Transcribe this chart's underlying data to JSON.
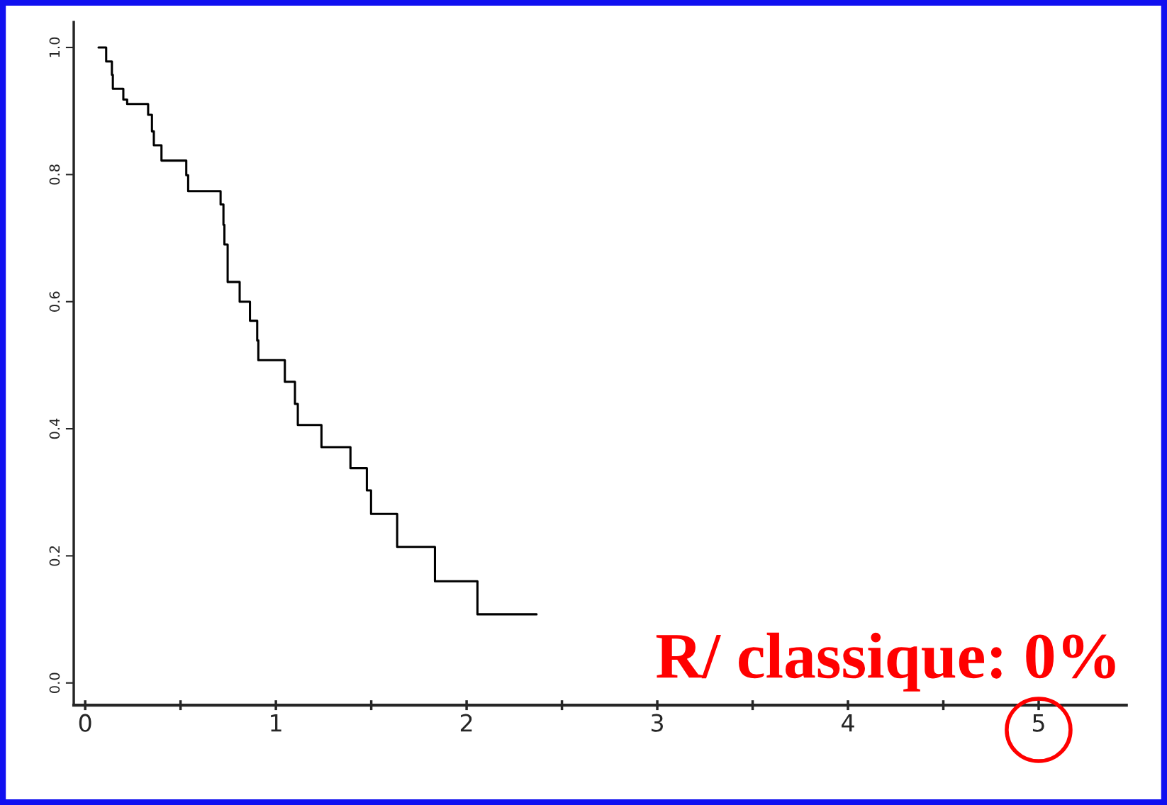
{
  "chart_data": {
    "type": "step",
    "x": [
      0.07,
      0.11,
      0.14,
      0.145,
      0.2,
      0.22,
      0.33,
      0.35,
      0.36,
      0.4,
      0.53,
      0.54,
      0.71,
      0.725,
      0.73,
      0.747,
      0.81,
      0.864,
      0.902,
      0.908,
      1.047,
      1.1,
      1.115,
      1.239,
      1.391,
      1.477,
      1.499,
      1.636,
      1.834,
      2.057,
      2.367
    ],
    "series": [
      {
        "color": "#000000",
        "values": [
          1.0,
          0.978,
          0.957,
          0.935,
          0.918,
          0.911,
          0.894,
          0.868,
          0.846,
          0.822,
          0.799,
          0.774,
          0.753,
          0.721,
          0.69,
          0.631,
          0.6,
          0.57,
          0.539,
          0.508,
          0.474,
          0.439,
          0.406,
          0.371,
          0.338,
          0.303,
          0.266,
          0.214,
          0.16,
          0.108,
          0.108
        ]
      }
    ],
    "xlim": [
      -0.06,
      5.46
    ],
    "ylim": [
      -0.035,
      1.04
    ],
    "xticks": [
      0,
      {
        "value": 0.5,
        "label": null
      },
      1,
      {
        "value": 1.5,
        "label": null
      },
      2,
      {
        "value": 2.5,
        "label": null
      },
      3,
      {
        "value": 3.5,
        "label": null
      },
      4,
      {
        "value": 4.5,
        "label": null
      },
      5
    ],
    "yticks": [
      {
        "value": 0,
        "label": "0.0"
      },
      {
        "value": 0.2,
        "label": "0.2"
      },
      {
        "value": 0.4,
        "label": "0.4"
      },
      {
        "value": 0.6,
        "label": "0.6"
      },
      {
        "value": 0.8,
        "label": "0.8"
      },
      {
        "value": 1,
        "label": "1.0"
      }
    ],
    "grid": false,
    "line_style": "solid",
    "marker": "none",
    "annotations": [
      "R/ classique: 0%"
    ]
  }
}
